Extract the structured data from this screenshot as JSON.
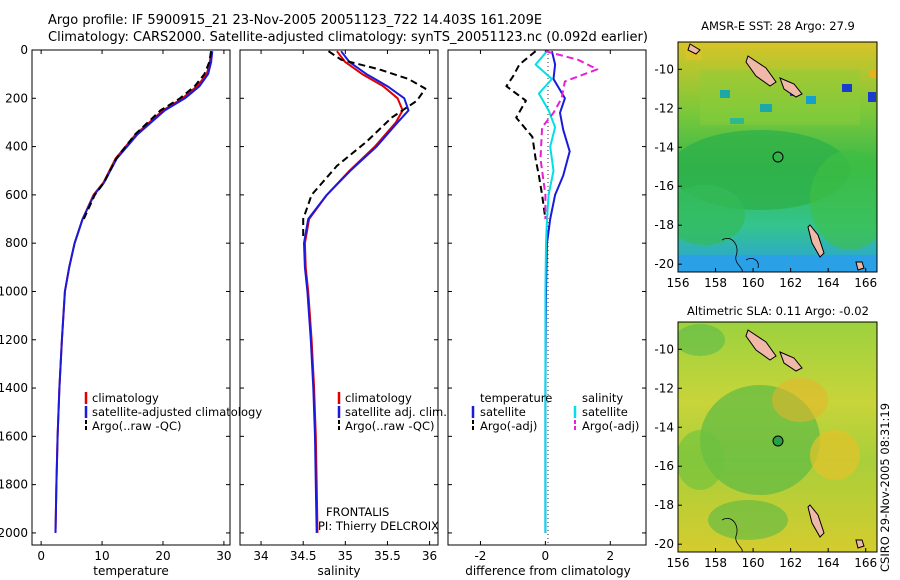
{
  "header": {
    "line1": "Argo profile: IF 5900915_21 23-Nov-2005 20051123_722 14.403S 161.209E",
    "line2": "Climatology: CARS2000. Satellite-adjusted climatology: synTS_20051123.nc (0.092d earlier)"
  },
  "colors": {
    "climatology": "#e00000",
    "satellite": "#1a1adc",
    "argo": "#000000",
    "satellite_salinity": "#00e0e8",
    "argo_salinity_adj": "#e81ed8"
  },
  "chart_data": [
    {
      "type": "line",
      "id": "temperature",
      "xlabel": "temperature",
      "ylabel": "",
      "xlim": [
        -1.5,
        31
      ],
      "ylim": [
        2050,
        0
      ],
      "xticks": [
        "0",
        "10",
        "20",
        "30"
      ],
      "yticks": [
        "0",
        "200",
        "400",
        "600",
        "800",
        "1000",
        "1200",
        "1400",
        "1600",
        "1800",
        "2000"
      ],
      "legend": [
        "climatology",
        "satellite-adjusted climatology",
        "Argo(..raw -QC)"
      ],
      "series": [
        {
          "name": "climatology",
          "style": "solid",
          "x": [
            27.9,
            27.7,
            27.2,
            25.6,
            23.2,
            20.0,
            15.5,
            12.2,
            10.2,
            8.6,
            6.8,
            5.5,
            4.6,
            3.9,
            3.4,
            3.0,
            2.7,
            2.5,
            2.35
          ],
          "y": [
            5,
            50,
            100,
            150,
            200,
            250,
            350,
            450,
            550,
            600,
            700,
            800,
            900,
            1000,
            1200,
            1400,
            1600,
            1800,
            2000
          ]
        },
        {
          "name": "satellite-adjusted climatology",
          "style": "solid",
          "x": [
            28.1,
            27.9,
            27.4,
            26.0,
            23.6,
            20.3,
            15.8,
            12.4,
            10.3,
            8.7,
            6.8,
            5.5,
            4.6,
            3.9,
            3.4,
            3.0,
            2.7,
            2.5,
            2.35
          ],
          "y": [
            5,
            50,
            100,
            150,
            200,
            250,
            350,
            450,
            550,
            600,
            700,
            800,
            900,
            1000,
            1200,
            1400,
            1600,
            1800,
            2000
          ]
        },
        {
          "name": "Argo(..raw -QC)",
          "style": "dashed",
          "x": [
            27.9,
            27.6,
            26.8,
            25.2,
            22.8,
            19.6,
            15.4,
            12.3,
            10.3,
            8.8,
            7.0
          ],
          "y": [
            5,
            50,
            100,
            150,
            200,
            250,
            350,
            450,
            550,
            600,
            700
          ]
        }
      ]
    },
    {
      "type": "line",
      "id": "salinity",
      "xlabel": "salinity",
      "xlim": [
        33.75,
        36.1
      ],
      "ylim": [
        2050,
        0
      ],
      "xticks": [
        "34",
        "34.5",
        "35",
        "35.5",
        "36"
      ],
      "legend": [
        "climatology",
        "satellite adj. clim.",
        "Argo(..raw -QC)"
      ],
      "annotation": [
        "FRONTALIS",
        "PI: Thierry DELCROIX"
      ],
      "series": [
        {
          "name": "climatology",
          "style": "solid",
          "x": [
            34.9,
            35.0,
            35.2,
            35.45,
            35.62,
            35.68,
            35.6,
            35.35,
            35.05,
            34.78,
            34.57,
            34.52,
            34.53,
            34.56,
            34.6,
            34.63,
            34.65,
            34.66,
            34.67
          ],
          "y": [
            5,
            50,
            100,
            150,
            200,
            250,
            300,
            400,
            500,
            600,
            700,
            800,
            900,
            1000,
            1200,
            1400,
            1600,
            1800,
            2000
          ]
        },
        {
          "name": "satellite adj. clim.",
          "style": "solid",
          "x": [
            34.95,
            35.05,
            35.25,
            35.5,
            35.7,
            35.75,
            35.62,
            35.37,
            35.06,
            34.78,
            34.56,
            34.51,
            34.52,
            34.55,
            34.59,
            34.62,
            34.64,
            34.65,
            34.66
          ],
          "y": [
            5,
            50,
            100,
            150,
            200,
            250,
            300,
            400,
            500,
            600,
            700,
            800,
            900,
            1000,
            1200,
            1400,
            1600,
            1800,
            2000
          ]
        },
        {
          "name": "Argo(..raw -QC)",
          "style": "dashed",
          "x": [
            34.8,
            34.95,
            35.4,
            35.75,
            35.95,
            35.85,
            35.55,
            35.25,
            34.9,
            34.6,
            34.5,
            34.5
          ],
          "y": [
            5,
            40,
            80,
            120,
            160,
            210,
            280,
            380,
            480,
            600,
            700,
            780
          ]
        }
      ]
    },
    {
      "type": "line",
      "id": "difference",
      "xlabel": "difference from climatology",
      "xlim": [
        -3,
        3.1
      ],
      "ylim": [
        2050,
        0
      ],
      "xticks": [
        "-2",
        "0",
        "2"
      ],
      "legend": [
        "temperature",
        "satellite",
        "Argo(-adj)",
        "salinity",
        "satellite",
        "Argo(-adj)"
      ],
      "series": [
        {
          "name": "temperature satellite",
          "style": "solid",
          "x": [
            0.2,
            0.3,
            0.25,
            0.6,
            0.45,
            0.55,
            0.75,
            0.55,
            0.3,
            0.15,
            0.05,
            0.02,
            0.0,
            0.0
          ],
          "y": [
            5,
            60,
            120,
            200,
            260,
            330,
            420,
            520,
            600,
            700,
            800,
            1000,
            1400,
            2000
          ]
        },
        {
          "name": "temperature Argo(-adj)",
          "style": "dashed",
          "x": [
            -0.3,
            -0.8,
            -1.0,
            -1.2,
            -0.6,
            -0.9,
            -0.4,
            -0.3,
            -0.2,
            -0.1,
            0.0
          ],
          "y": [
            5,
            60,
            110,
            150,
            210,
            280,
            360,
            450,
            520,
            600,
            700
          ]
        },
        {
          "name": "salinity satellite",
          "style": "solid",
          "x": [
            0.05,
            -0.3,
            0.2,
            -0.2,
            0.1,
            0.3,
            0.15,
            0.25,
            0.1,
            0.05,
            0.02,
            0.0,
            0.0
          ],
          "y": [
            5,
            60,
            120,
            180,
            250,
            320,
            400,
            500,
            600,
            700,
            800,
            1000,
            2000
          ]
        },
        {
          "name": "salinity Argo(-adj)",
          "style": "dashed",
          "x": [
            0.0,
            1.0,
            1.6,
            0.6,
            0.5,
            0.25,
            -0.1,
            -0.15,
            0.0,
            0.0
          ],
          "y": [
            5,
            40,
            80,
            130,
            200,
            260,
            320,
            450,
            600,
            700
          ]
        }
      ]
    },
    {
      "type": "heatmap",
      "id": "sst",
      "title": "AMSR-E SST: 28 Argo: 27.9",
      "xticks": [
        "156",
        "158",
        "160",
        "162",
        "164",
        "166"
      ],
      "yticks": [
        "-10",
        "-12",
        "-14",
        "-16",
        "-18",
        "-20"
      ],
      "argo_position": {
        "lon": 161.2,
        "lat": -14.4
      }
    },
    {
      "type": "heatmap",
      "id": "sla",
      "title": "Altimetric SLA: 0.11 Argo: -0.02",
      "xticks": [
        "156",
        "158",
        "160",
        "162",
        "164",
        "166"
      ],
      "yticks": [
        "-10",
        "-12",
        "-14",
        "-16",
        "-18",
        "-20"
      ],
      "argo_position": {
        "lon": 161.2,
        "lat": -14.4
      }
    }
  ],
  "footer": {
    "stamp": "CSIRO 29-Nov-2005 08:31:19"
  }
}
